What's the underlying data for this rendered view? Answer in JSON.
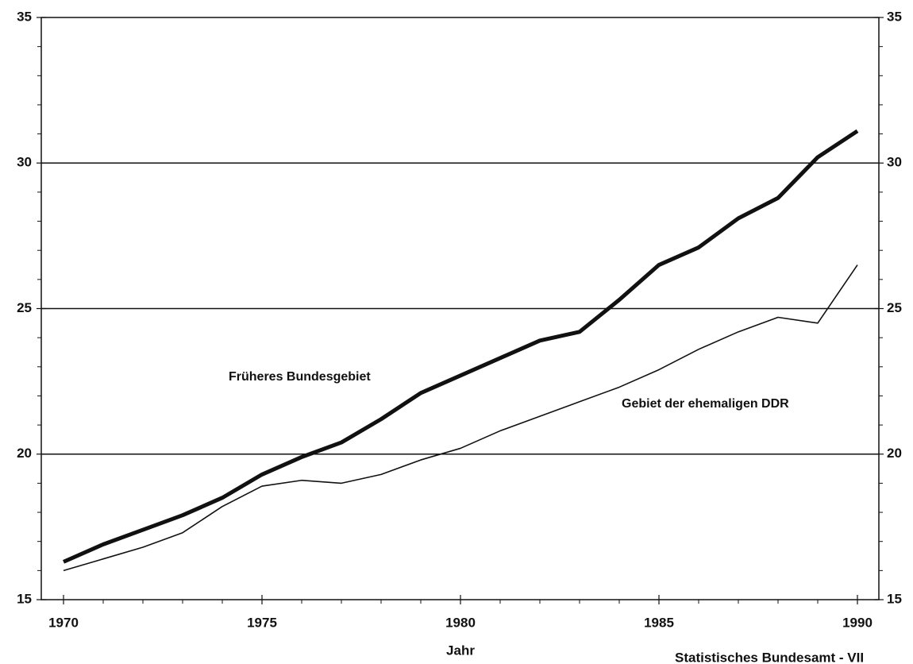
{
  "chart_data": {
    "type": "line",
    "x_label": "Jahr",
    "source": "Statistisches Bundesamt - VII",
    "x": [
      1970,
      1971,
      1972,
      1973,
      1974,
      1975,
      1976,
      1977,
      1978,
      1979,
      1980,
      1981,
      1982,
      1983,
      1984,
      1985,
      1986,
      1987,
      1988,
      1989,
      1990
    ],
    "series": [
      {
        "name": "Früheres Bundesgebiet",
        "color": "#111111",
        "width": 5,
        "values": [
          16.3,
          16.9,
          17.4,
          17.9,
          18.5,
          19.3,
          19.9,
          20.4,
          21.2,
          22.1,
          22.7,
          23.3,
          23.9,
          24.2,
          25.3,
          26.5,
          27.1,
          28.1,
          28.8,
          30.2,
          31.1
        ]
      },
      {
        "name": "Gebiet der ehemaligen DDR",
        "color": "#111111",
        "width": 1.6,
        "values": [
          16.0,
          16.4,
          16.8,
          17.3,
          18.2,
          18.9,
          19.1,
          19.0,
          19.3,
          19.8,
          20.2,
          20.8,
          21.3,
          21.8,
          22.3,
          22.9,
          23.6,
          24.2,
          24.7,
          24.5,
          26.5
        ]
      }
    ],
    "xlim": [
      1969.44,
      1990.54
    ],
    "xticks": [
      1970,
      1975,
      1980,
      1985,
      1990
    ],
    "ylim": [
      15,
      35
    ],
    "yticks": [
      15,
      20,
      25,
      30,
      35
    ],
    "yminorticks": [
      16,
      17,
      18,
      19,
      21,
      22,
      23,
      24,
      26,
      27,
      28,
      29,
      31,
      32,
      33,
      34
    ],
    "grid": true
  }
}
